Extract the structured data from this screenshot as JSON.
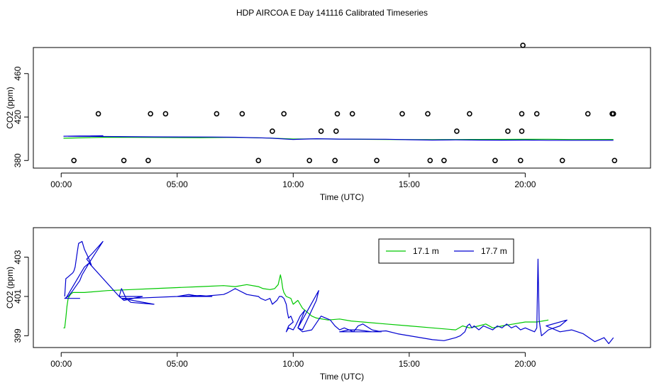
{
  "title": "HDP AIRCOA E  Day 141116  Calibrated Timeseries",
  "colors": {
    "green": "#00c800",
    "blue": "#0000d0",
    "black": "#000000"
  },
  "chart_data": [
    {
      "type": "scatter",
      "xlabel": "Time (UTC)",
      "ylabel": "CO2 (ppm)",
      "xlim": [
        -1.2,
        25.4
      ],
      "ylim": [
        373,
        484
      ],
      "xticks": [
        0,
        5,
        10,
        15,
        20
      ],
      "xtick_labels": [
        "00:00",
        "05:00",
        "10:00",
        "15:00",
        "20:00"
      ],
      "yticks": [
        380,
        420,
        460
      ],
      "ytick_labels": [
        "380",
        "420",
        "460"
      ],
      "grid": false,
      "calibration_points": {
        "name": "",
        "x": [
          0.55,
          1.6,
          2.7,
          3.75,
          3.85,
          4.5,
          6.7,
          7.8,
          8.5,
          9.1,
          9.6,
          10.7,
          11.2,
          11.8,
          11.85,
          11.9,
          12.55,
          13.6,
          14.7,
          15.8,
          15.9,
          16.5,
          17.05,
          17.6,
          18.7,
          19.25,
          19.8,
          19.85,
          19.85,
          19.9,
          20.5,
          21.6,
          22.7,
          23.75,
          23.8,
          23.85
        ],
        "y": [
          380,
          423,
          380,
          380,
          423,
          423,
          423,
          423,
          380,
          407,
          423,
          380,
          407,
          380,
          407,
          423,
          423,
          380,
          423,
          423,
          380,
          380,
          407,
          423,
          380,
          407,
          380,
          407,
          423,
          486,
          423,
          380,
          423,
          423,
          423,
          380
        ]
      },
      "series": [
        {
          "name": "17.1 m",
          "color": "#00c800",
          "x": [
            0.1,
            2,
            4,
            6,
            7.5,
            9,
            10,
            11,
            12,
            14,
            16,
            18,
            20,
            21,
            22,
            23.8
          ],
          "y": [
            400.5,
            401.4,
            401.2,
            401.0,
            401.3,
            400.6,
            399.8,
            399.9,
            399.7,
            399.3,
            399.2,
            399.4,
            399.5,
            399.6,
            399.3,
            399.4
          ]
        },
        {
          "name": "17.7 m",
          "color": "#0000d0",
          "x": [
            0.1,
            0.8,
            1.8,
            0.3,
            2.5,
            4.0,
            6.5,
            7.5,
            9.0,
            10.0,
            10.2,
            11.0,
            12.0,
            14.0,
            15.0,
            16.0,
            17.0,
            18.0,
            19.0,
            20.0,
            21.0,
            23.8
          ],
          "y": [
            402.3,
            402.6,
            402.7,
            402.3,
            402.0,
            401.7,
            401.6,
            401.4,
            400.6,
            399.3,
            399.5,
            400.0,
            399.7,
            399.6,
            399.1,
            398.8,
            399.0,
            398.8,
            398.7,
            398.8,
            398.6,
            398.6
          ]
        }
      ]
    },
    {
      "type": "line",
      "xlabel": "Time (UTC)",
      "ylabel": "CO2 (ppm)",
      "xlim": [
        -1.2,
        25.4
      ],
      "ylim": [
        398.4,
        404.5
      ],
      "xticks": [
        0,
        5,
        10,
        15,
        20
      ],
      "xtick_labels": [
        "00:00",
        "05:00",
        "10:00",
        "15:00",
        "20:00"
      ],
      "yticks": [
        399,
        401,
        403
      ],
      "ytick_labels": [
        "399",
        "401",
        "403"
      ],
      "grid": false,
      "legend_position": "top-right",
      "series": [
        {
          "name": "17.1 m",
          "color": "#00c800",
          "x": [
            0.1,
            0.15,
            0.2,
            0.25,
            0.3,
            0.35,
            0.4,
            0.5,
            1.0,
            2.0,
            3.0,
            4.0,
            5.0,
            6.0,
            7.0,
            7.5,
            8.0,
            8.5,
            8.7,
            9.0,
            9.2,
            9.35,
            9.45,
            9.5,
            9.55,
            9.6,
            9.7,
            9.9,
            10.0,
            10.2,
            10.4,
            10.6,
            10.8,
            11.0,
            11.5,
            12.0,
            12.5,
            13.0,
            14.0,
            15.0,
            16.0,
            16.5,
            17.0,
            17.3,
            17.6,
            18.0,
            18.3,
            18.6,
            19.0,
            19.5,
            20.0,
            20.5,
            21.0
          ],
          "y": [
            399.4,
            399.4,
            399.9,
            400.5,
            400.9,
            401.0,
            401.1,
            401.2,
            401.2,
            401.3,
            401.35,
            401.4,
            401.45,
            401.5,
            401.55,
            401.5,
            401.6,
            401.5,
            401.4,
            401.35,
            401.4,
            401.6,
            402.1,
            401.8,
            401.4,
            401.2,
            401.0,
            400.9,
            400.6,
            400.8,
            400.4,
            400.2,
            400.0,
            399.9,
            399.8,
            399.85,
            399.75,
            399.7,
            399.6,
            399.5,
            399.4,
            399.35,
            399.3,
            399.5,
            399.4,
            399.5,
            399.6,
            399.4,
            399.5,
            399.6,
            399.7,
            399.7,
            399.8
          ]
        },
        {
          "name": "17.7 m",
          "color": "#0000d0",
          "x": [
            0.15,
            0.2,
            0.3,
            0.5,
            0.55,
            0.6,
            0.7,
            0.75,
            0.9,
            1.0,
            1.2,
            1.3,
            1.1,
            1.35,
            1.8,
            1.2,
            0.9,
            0.8,
            0.5,
            0.3,
            0.15,
            0.15,
            0.8,
            0.2,
            1.0,
            1.2,
            2.5,
            2.6,
            2.8,
            3.0,
            4.0,
            2.6,
            2.7,
            3.5,
            2.5,
            2.6,
            3.0,
            5.0,
            6.0,
            6.5,
            5.0,
            5.5,
            6.0,
            7.0,
            7.2,
            7.5,
            8.0,
            8.5,
            8.6,
            8.8,
            9.0,
            9.1,
            9.3,
            9.4,
            9.5,
            9.6,
            9.7,
            9.75,
            9.8,
            9.9,
            10.0,
            9.8,
            9.7,
            9.8,
            10.0,
            10.1,
            10.3,
            10.5,
            10.2,
            10.4,
            11.0,
            11.1,
            10.2,
            10.4,
            10.8,
            11.2,
            11.4,
            11.6,
            11.8,
            12.0,
            12.2,
            12.6,
            12.8,
            13.0,
            13.4,
            13.8,
            12.0,
            12.4,
            12.8,
            13.4,
            14.0,
            14.5,
            15.0,
            15.5,
            16.0,
            16.5,
            17.0,
            17.2,
            17.4,
            17.5,
            17.6,
            17.7,
            17.8,
            18.0,
            18.2,
            18.4,
            18.6,
            18.8,
            19.0,
            19.2,
            19.4,
            19.6,
            19.8,
            20.0,
            20.2,
            20.4,
            20.5,
            20.55,
            20.6,
            20.65,
            20.7,
            21.0,
            21.5,
            21.8,
            20.9,
            21.5,
            22.0,
            22.5,
            23.0,
            23.2,
            23.4,
            23.6,
            23.8
          ],
          "y": [
            401.0,
            401.9,
            402.0,
            402.2,
            402.3,
            402.5,
            403.3,
            403.7,
            403.8,
            403.4,
            402.9,
            402.6,
            402.9,
            403.2,
            403.8,
            402.7,
            402.1,
            401.8,
            401.3,
            401.0,
            400.9,
            400.9,
            400.9,
            400.9,
            402.5,
            402.7,
            401.0,
            401.4,
            400.9,
            400.7,
            400.6,
            400.9,
            400.8,
            401.0,
            401.0,
            400.9,
            400.9,
            401.0,
            401.05,
            401.0,
            401.0,
            401.1,
            401.0,
            401.1,
            401.2,
            401.4,
            401.1,
            401.0,
            400.9,
            400.8,
            400.9,
            400.6,
            400.8,
            401.0,
            401.0,
            400.9,
            400.6,
            400.2,
            399.9,
            400.0,
            399.7,
            399.5,
            399.2,
            399.4,
            399.3,
            399.5,
            400.0,
            400.3,
            399.4,
            399.3,
            400.8,
            401.3,
            399.4,
            399.2,
            399.3,
            400.0,
            399.9,
            399.8,
            399.5,
            399.3,
            399.4,
            399.2,
            399.5,
            399.6,
            399.3,
            399.2,
            399.2,
            399.3,
            399.3,
            399.2,
            399.25,
            399.1,
            399.0,
            398.9,
            398.8,
            398.75,
            398.9,
            399.0,
            399.2,
            399.5,
            399.6,
            399.4,
            399.5,
            399.3,
            399.5,
            399.4,
            399.3,
            399.5,
            399.4,
            399.6,
            399.4,
            399.5,
            399.3,
            399.4,
            399.3,
            399.2,
            399.4,
            402.9,
            399.8,
            399.4,
            399.0,
            399.3,
            399.5,
            399.8,
            399.5,
            399.2,
            399.3,
            399.1,
            398.7,
            398.8,
            398.9,
            398.6,
            398.9
          ]
        }
      ]
    }
  ]
}
